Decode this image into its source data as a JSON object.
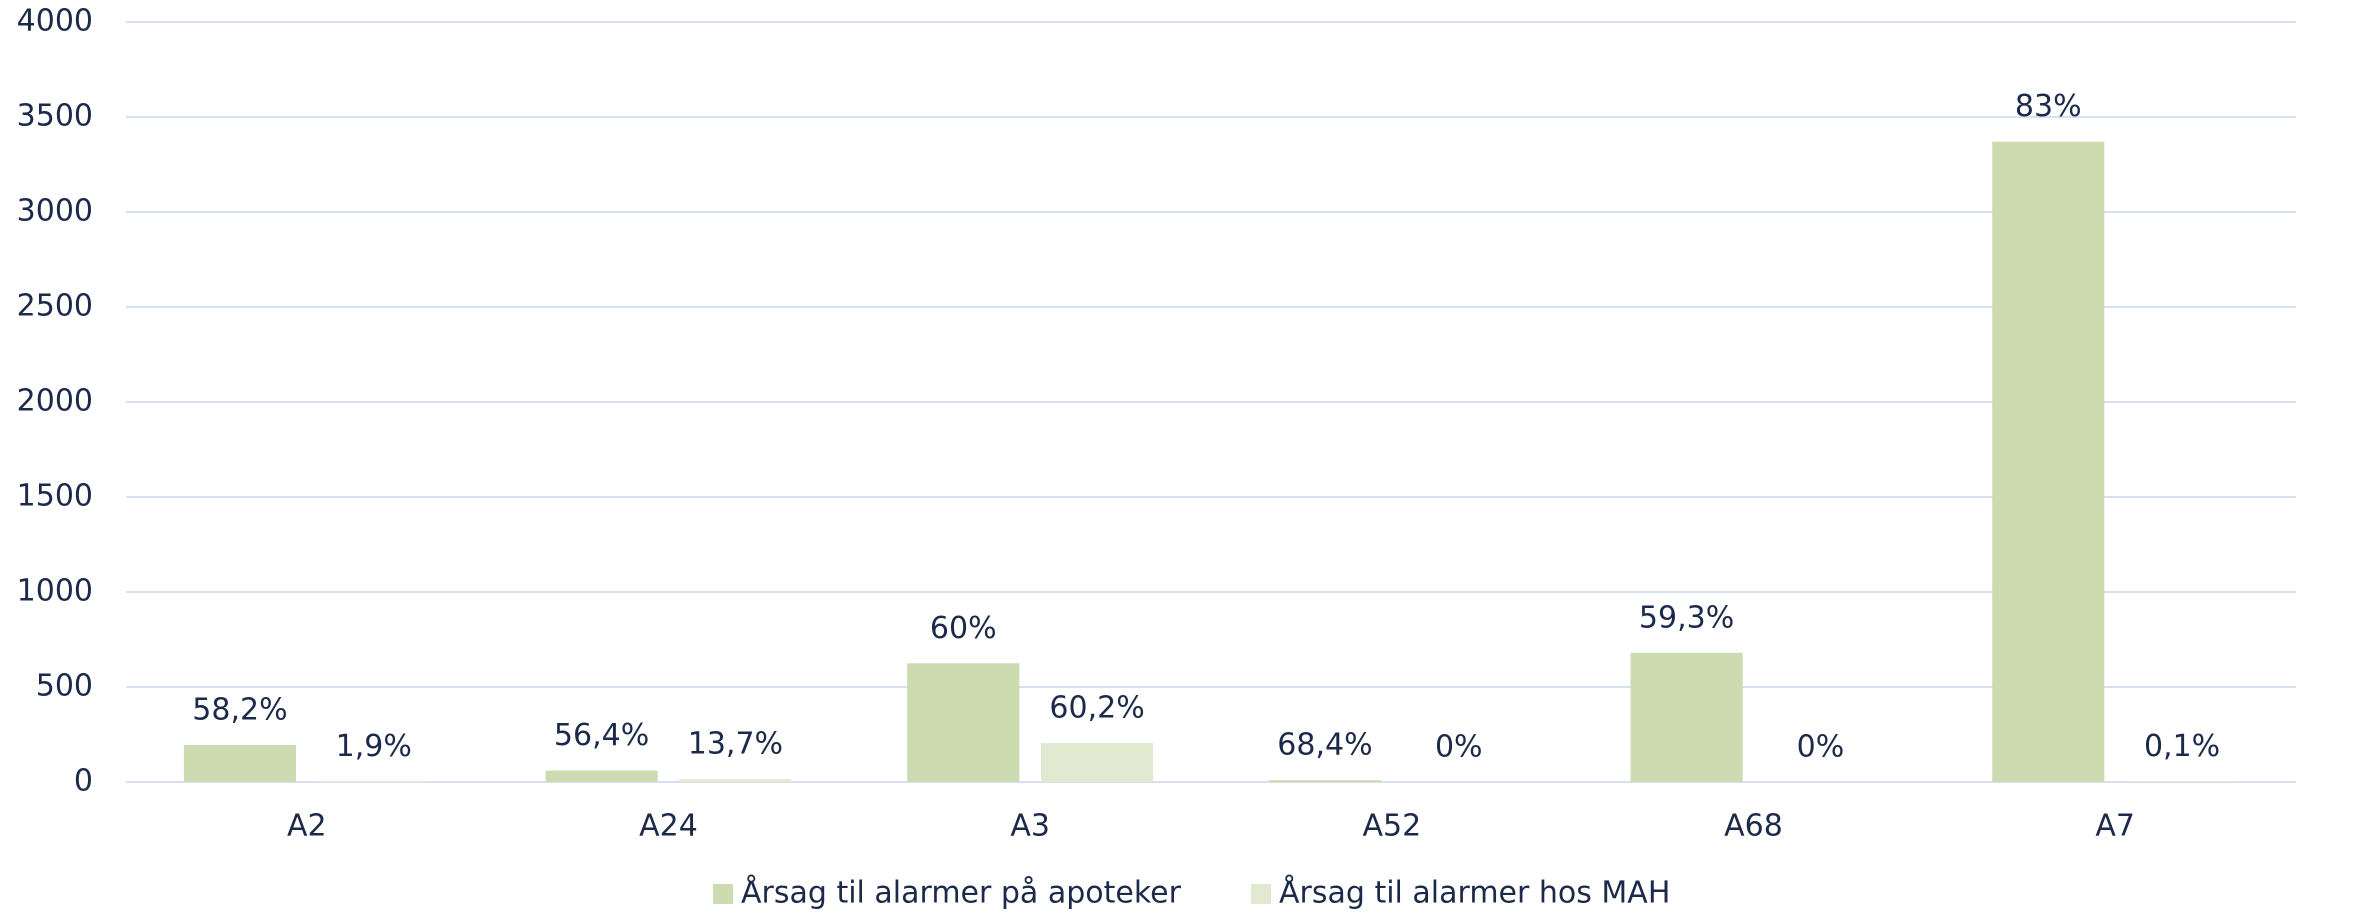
{
  "chart_data": {
    "type": "bar",
    "categories": [
      "A2",
      "A24",
      "A3",
      "A52",
      "A68",
      "A7"
    ],
    "series": [
      {
        "name": "Årsag til alarmer på apoteker",
        "color": "#cddcb0",
        "values": [
          195,
          60,
          625,
          10,
          680,
          3370
        ],
        "annotations": [
          "58,2%",
          "56,4%",
          "60%",
          "68,4%",
          "59,3%",
          "83%"
        ]
      },
      {
        "name": "Årsag til alarmer hos MAH",
        "color": "#e2e9d1",
        "values": [
          3,
          15,
          205,
          0,
          0,
          2
        ],
        "annotations": [
          "1,9%",
          "13,7%",
          "60,2%",
          "0%",
          "0%",
          "0,1%"
        ]
      }
    ],
    "ylim": [
      0,
      4000
    ],
    "yticks": [
      0,
      500,
      1000,
      1500,
      2000,
      2500,
      3000,
      3500,
      4000
    ],
    "grid": true,
    "legend": "bottom"
  }
}
